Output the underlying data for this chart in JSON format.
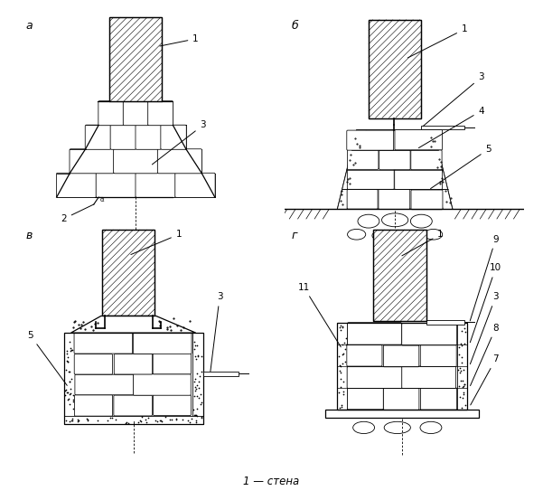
{
  "legend_text": "1 — стена",
  "bg_color": "#ffffff",
  "panel_letters": [
    "а",
    "б",
    "в",
    "г"
  ]
}
